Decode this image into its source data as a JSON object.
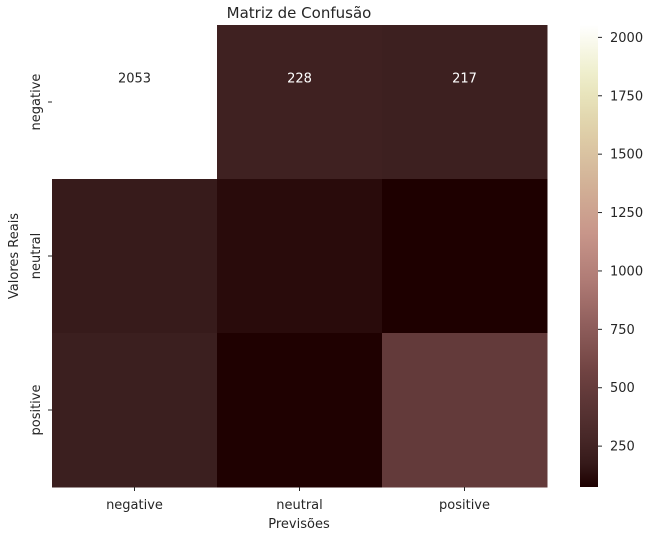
{
  "chart_data": {
    "type": "heatmap",
    "title": "Matriz de Confusão",
    "xlabel": "Previsões",
    "ylabel": "Valores Reais",
    "x_categories": [
      "negative",
      "neutral",
      "positive"
    ],
    "y_categories": [
      "negative",
      "neutral",
      "positive"
    ],
    "values": [
      [
        2053,
        228,
        217
      ],
      [
        180,
        120,
        75
      ],
      [
        200,
        80,
        480
      ]
    ],
    "annotations": [
      [
        "2053",
        "228",
        "217"
      ],
      [
        "",
        "",
        ""
      ],
      [
        "",
        "",
        ""
      ]
    ],
    "colorbar": {
      "min": 75,
      "max": 2053,
      "ticks": [
        250,
        500,
        750,
        1000,
        1250,
        1500,
        1750,
        2000
      ]
    },
    "colormap": "pink"
  }
}
